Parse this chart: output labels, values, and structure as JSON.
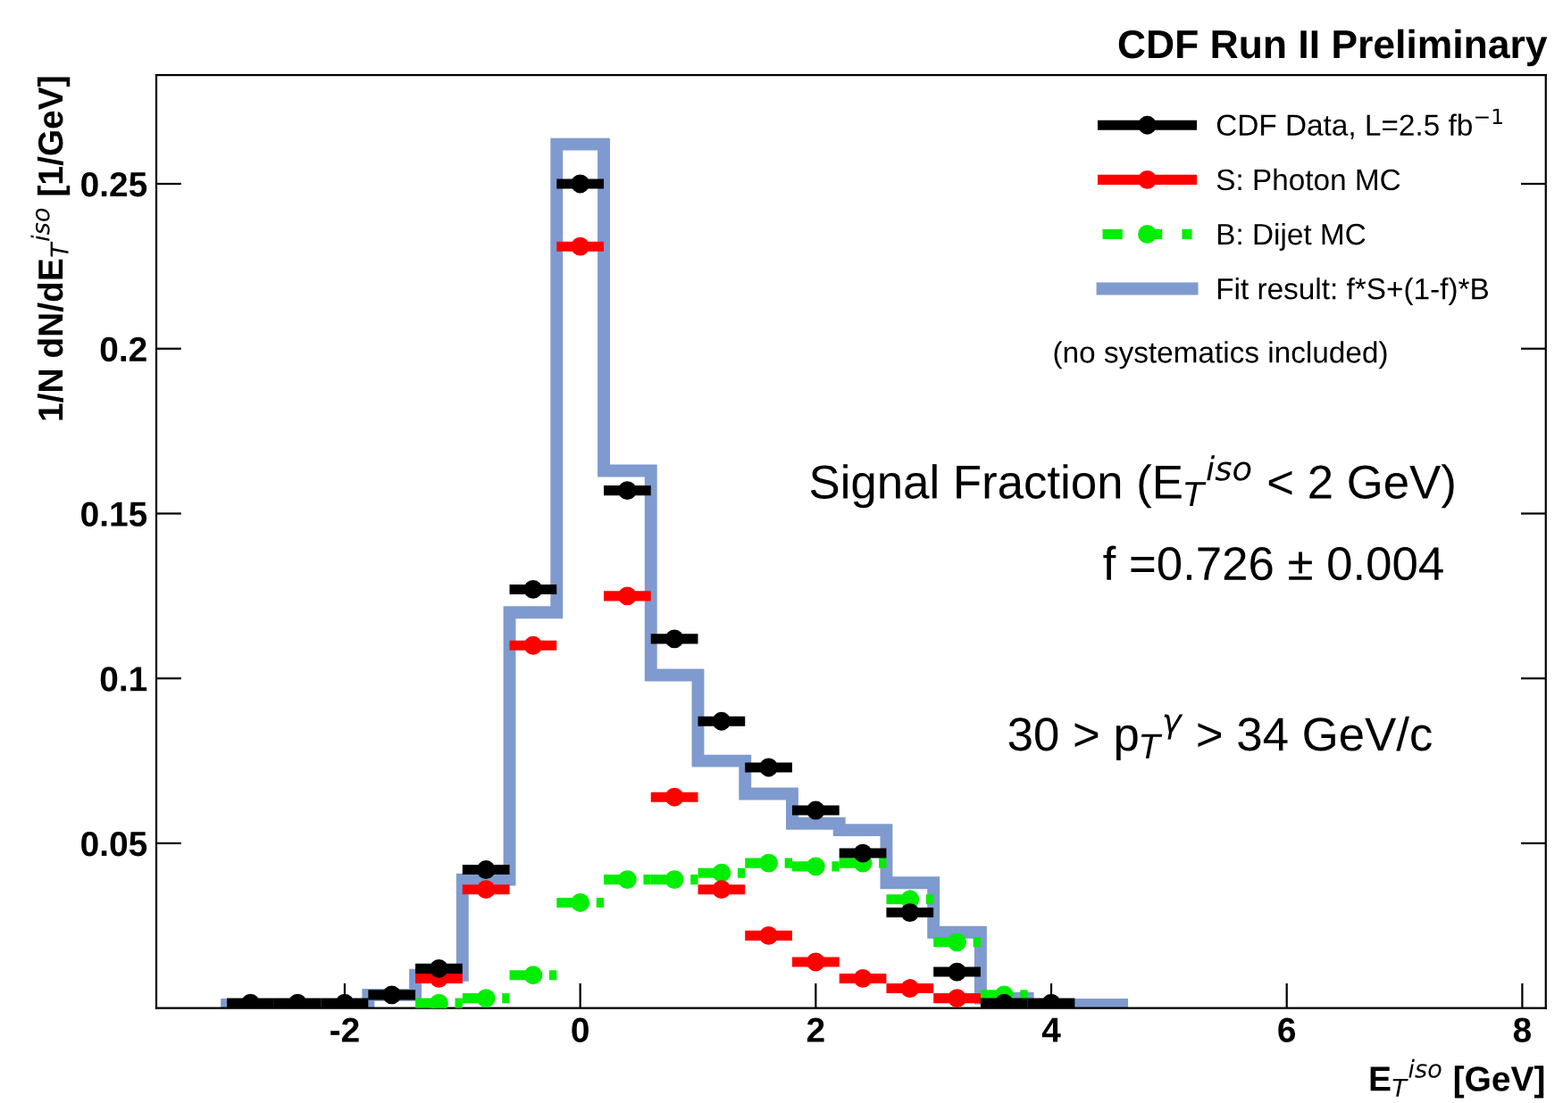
{
  "chart_data": {
    "type": "histogram",
    "title": "CDF Run II Preliminary",
    "xlabel": "E$_{T}$$^{iso}$ [GeV]",
    "ylabel": "1/N dN/dE$_{T}$$^{iso}$ [1/GeV]",
    "bins": [
      -3.0,
      -2.6,
      -2.2,
      -1.8,
      -1.4,
      -1.0,
      -0.6,
      -0.2,
      0.2,
      0.6,
      1.0,
      1.4,
      1.8,
      2.2,
      2.6,
      3.0,
      3.4,
      3.8,
      4.2,
      4.6
    ],
    "series": [
      {
        "name": "CDF Data, L=2.5 fb$^{−1}$",
        "type": "scatter",
        "color": "#000000",
        "line_style": "solid",
        "x": [
          -2.8,
          -2.4,
          -2.0,
          -1.6,
          -1.2,
          -0.8,
          -0.4,
          0,
          0.4,
          0.8,
          1.2,
          1.6,
          2.0,
          2.4,
          2.8,
          3.2,
          3.6,
          4.0
        ],
        "xerrors": [
          0.2,
          0.2,
          0.2,
          0.2,
          0.2,
          0.2,
          0.2,
          0.2,
          0.2,
          0.2,
          0.2,
          0.2,
          0.2,
          0.2,
          0.2,
          0.2,
          0.2,
          0.2
        ],
        "values": [
          0.0015,
          0.0015,
          0.0015,
          0.004,
          0.012,
          0.042,
          0.127,
          0.25,
          0.157,
          0.112,
          0.087,
          0.073,
          0.06,
          0.047,
          0.029,
          0.011,
          0.0015,
          0.0015
        ]
      },
      {
        "name": "S: Photon MC",
        "type": "scatter",
        "color": "#ff0000",
        "line_style": "solid",
        "x": [
          -1.2,
          -0.8,
          -0.4,
          0,
          0.4,
          0.8,
          1.2,
          1.6,
          2.0,
          2.4,
          2.8,
          3.2
        ],
        "xerrors": [
          0.2,
          0.2,
          0.2,
          0.2,
          0.2,
          0.2,
          0.2,
          0.2,
          0.2,
          0.2,
          0.2,
          0.2
        ],
        "values": [
          0.009,
          0.036,
          0.11,
          0.231,
          0.125,
          0.064,
          0.036,
          0.022,
          0.014,
          0.009,
          0.006,
          0.003
        ]
      },
      {
        "name": "B: Dijet MC",
        "type": "scatter",
        "color": "#00ee00",
        "line_style": "dashed",
        "x": [
          -1.2,
          -0.8,
          -0.4,
          0,
          0.4,
          0.8,
          1.2,
          1.6,
          2.0,
          2.4,
          2.8,
          3.2,
          3.6
        ],
        "xerrors": [
          0.2,
          0.2,
          0.2,
          0.2,
          0.2,
          0.2,
          0.2,
          0.2,
          0.2,
          0.2,
          0.2,
          0.2,
          0.2
        ],
        "values": [
          0.0015,
          0.003,
          0.01,
          0.032,
          0.039,
          0.039,
          0.041,
          0.044,
          0.043,
          0.044,
          0.033,
          0.02,
          0.004
        ]
      },
      {
        "name": "Fit result: f*S+(1-f)*B",
        "color": "#7f9acf",
        "line_style": "solid",
        "values": [
          0.001,
          0.001,
          0.001,
          0.004,
          0.01,
          0.039,
          0.12,
          0.262,
          0.163,
          0.101,
          0.075,
          0.065,
          0.056,
          0.054,
          0.038,
          0.023,
          0.003,
          0.001,
          0.001
        ]
      }
    ],
    "xlim": [
      -3.6,
      8.2
    ],
    "ylim": [
      0,
      0.283
    ],
    "xticks": [
      -2,
      0,
      2,
      4,
      6,
      8
    ],
    "yticks": [
      0.05,
      0.1,
      0.15,
      0.2,
      0.25
    ],
    "legend": "top right",
    "marker": "circle",
    "annotations": [
      "(no systematics included)",
      "Signal Fraction (E$_{T}$$^{iso}$ < 2 GeV)",
      "f =0.726 ± 0.004",
      "30 > p$_{T}$$^{γ}$ > 34 GeV/c"
    ]
  }
}
